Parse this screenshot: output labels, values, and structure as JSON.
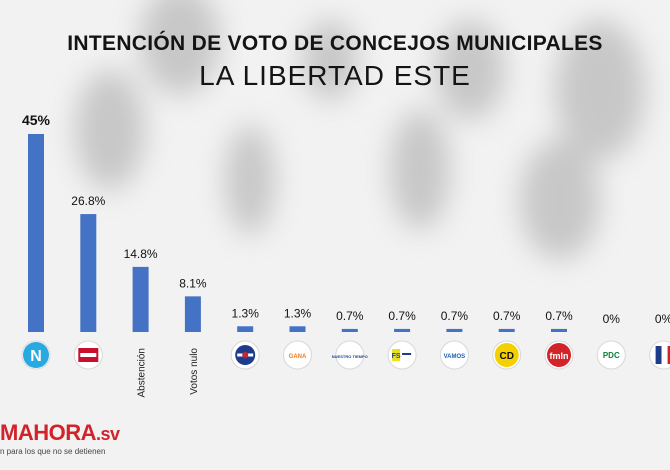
{
  "chart_data": {
    "type": "bar",
    "title": "INTENCIÓN DE VOTO DE CONCEJOS MUNICIPALES",
    "subtitle": "LA LIBERTAD ESTE",
    "xlabel": "",
    "ylabel": "",
    "ylim": [
      0,
      45
    ],
    "grid": false,
    "legend": "none",
    "categories": [
      "N",
      "FMLN",
      "Abstención",
      "Votos nulo",
      "ARENA",
      "GANA",
      "NUESTRO TIEMPO",
      "FS",
      "VAMOS",
      "CD",
      "FMLN",
      "PDC",
      "PCN"
    ],
    "category_labels": [
      "",
      "",
      "Abstención",
      "Votos nulo",
      "",
      "",
      "",
      "",
      "",
      "",
      "",
      "",
      ""
    ],
    "values": [
      45,
      26.8,
      14.8,
      8.1,
      1.3,
      1.3,
      0.7,
      0.7,
      0.7,
      0.7,
      0.7,
      0,
      0
    ],
    "value_labels": [
      "45%",
      "26.8%",
      "14.8%",
      "8.1%",
      "1.3%",
      "1.3%",
      "0.7%",
      "0.7%",
      "0.7%",
      "0.7%",
      "0.7%",
      "0%",
      "0%"
    ],
    "bar_color": "#4472c4"
  },
  "party_logos": [
    {
      "name": "n-logo-icon",
      "text": "N",
      "color": "#29a9e1"
    },
    {
      "name": "fmln-logo-icon",
      "text": "",
      "color": "#c8102e"
    },
    {
      "name": "",
      "text": "",
      "color": ""
    },
    {
      "name": "",
      "text": "",
      "color": ""
    },
    {
      "name": "arena-logo-icon",
      "text": "",
      "color": "#1f3c8c"
    },
    {
      "name": "gana-logo-icon",
      "text": "GANA",
      "color": "#f47b20"
    },
    {
      "name": "nuestro-tiempo-logo-icon",
      "text": "NUESTRO TIEMPO",
      "color": "#1b3f8b"
    },
    {
      "name": "fs-logo-icon",
      "text": "FS",
      "color": "#e9e21a"
    },
    {
      "name": "vamos-logo-icon",
      "text": "VAMOS",
      "color": "#1c5fb8"
    },
    {
      "name": "cd-logo-icon",
      "text": "CD",
      "color": "#f5d000"
    },
    {
      "name": "fmln-red-logo-icon",
      "text": "fmln",
      "color": "#d2232a"
    },
    {
      "name": "pdc-logo-icon",
      "text": "PDC",
      "color": "#0d7d3c"
    },
    {
      "name": "pcn-logo-icon",
      "text": "",
      "color": "#1f3c8c"
    }
  ],
  "brand": {
    "logo": "MAHORA",
    "logo_suffix": ".sv",
    "tagline": "n para los que no se detienen"
  }
}
